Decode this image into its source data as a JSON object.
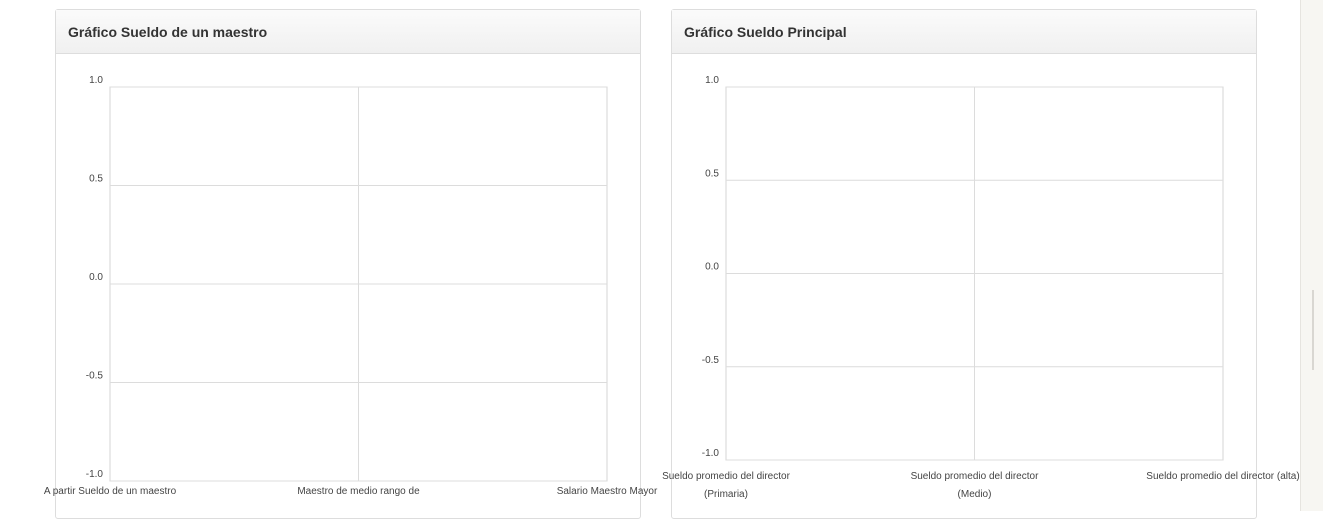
{
  "chart_data": [
    {
      "type": "line",
      "title": "Gráfico Sueldo de un maestro",
      "categories": [
        "A partir Sueldo de un maestro",
        "Maestro de medio rango de",
        "Salario Maestro Mayor"
      ],
      "ylim": [
        -1.0,
        1.0
      ],
      "yticks": [
        "1.0",
        "0.5",
        "0.0",
        "-0.5",
        "-1.0"
      ],
      "grid": true,
      "series": []
    },
    {
      "type": "line",
      "title": "Gráfico Sueldo Principal",
      "categories": [
        "Sueldo promedio del director (Primaria)",
        "Sueldo promedio del director (Medio)",
        "Sueldo promedio del director (alta)"
      ],
      "ylim": [
        -1.0,
        1.0
      ],
      "yticks": [
        "1.0",
        "0.5",
        "0.0",
        "-0.5",
        "-1.0"
      ],
      "grid": true,
      "series": []
    }
  ]
}
